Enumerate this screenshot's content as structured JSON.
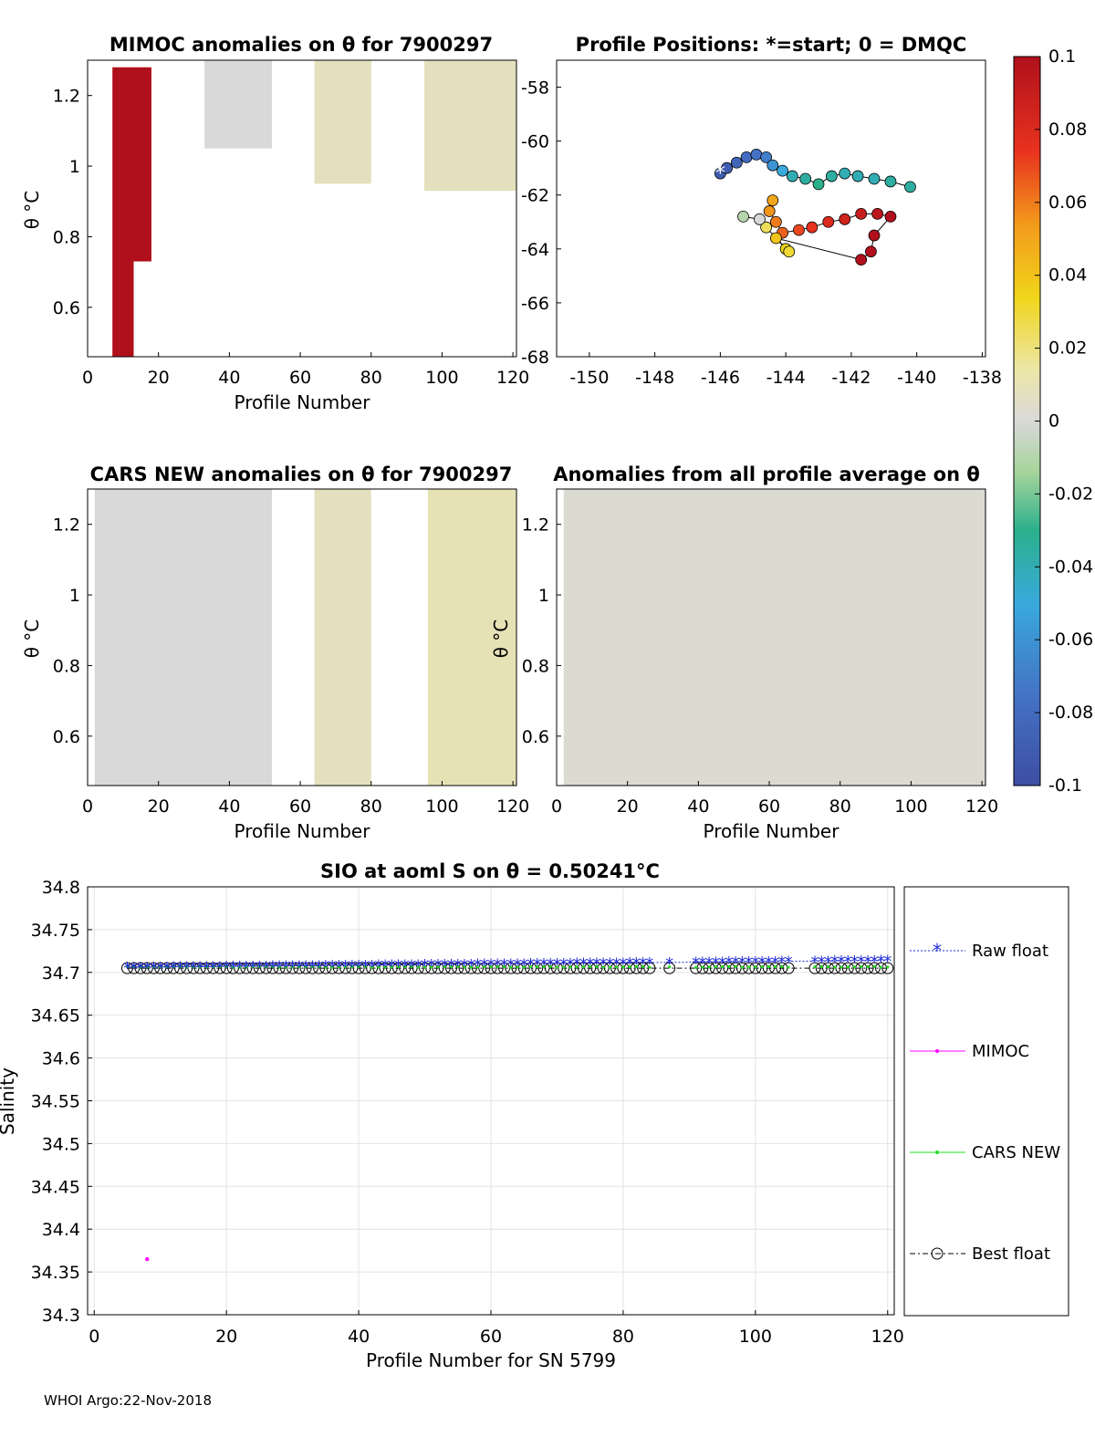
{
  "footer": "WHOI Argo:22-Nov-2018",
  "colorbar": {
    "ticks": [
      "0.1",
      "0.08",
      "0.06",
      "0.04",
      "0.02",
      "0",
      "-0.02",
      "-0.04",
      "-0.06",
      "-0.08",
      "-0.1"
    ],
    "range": [
      -0.1,
      0.1
    ]
  },
  "chart_data": [
    {
      "id": "mimoc",
      "type": "heatmap",
      "title": "MIMOC anomalies on θ  for 7900297",
      "xlabel": "Profile Number",
      "ylabel": "θ °C",
      "xlim": [
        0,
        121
      ],
      "ylim": [
        0.46,
        1.3
      ],
      "xticks": [
        "0",
        "20",
        "40",
        "60",
        "80",
        "100",
        "120"
      ],
      "yticks": [
        "1.2",
        "1",
        "0.8",
        "0.6"
      ],
      "data_columns": [
        {
          "from": 7,
          "to": 9,
          "theta_min": 0.46,
          "theta_max": 1.28,
          "anomaly": 0.1
        },
        {
          "from": 9,
          "to": 13,
          "theta_min": 0.46,
          "theta_max": 1.28,
          "anomaly": 0.1
        },
        {
          "from": 13,
          "to": 18,
          "theta_min": 0.73,
          "theta_max": 1.28,
          "anomaly": 0.1
        },
        {
          "from": 33,
          "to": 52,
          "theta_min": 1.05,
          "theta_max": 1.3,
          "anomaly": 0.0
        },
        {
          "from": 64,
          "to": 80,
          "theta_min": 0.95,
          "theta_max": 1.3,
          "anomaly": 0.008
        },
        {
          "from": 95,
          "to": 121,
          "theta_min": 0.93,
          "theta_max": 1.3,
          "anomaly": 0.008
        }
      ]
    },
    {
      "id": "positions",
      "type": "scatter",
      "title": "Profile Positions: *=start; 0 = DMQC",
      "xlim": [
        -151,
        -137.9
      ],
      "ylim": [
        -68,
        -57
      ],
      "xticks": [
        "-150",
        "-148",
        "-146",
        "-144",
        "-142",
        "-140",
        "-138"
      ],
      "yticks": [
        "-58",
        "-60",
        "-62",
        "-64",
        "-66",
        "-68"
      ],
      "start": [
        -146,
        -61.2
      ],
      "track": [
        [
          -146.0,
          -61.2,
          -0.09
        ],
        [
          -145.8,
          -61.0,
          -0.09
        ],
        [
          -145.5,
          -60.8,
          -0.085
        ],
        [
          -145.2,
          -60.6,
          -0.08
        ],
        [
          -144.9,
          -60.5,
          -0.075
        ],
        [
          -144.6,
          -60.6,
          -0.07
        ],
        [
          -144.4,
          -60.9,
          -0.06
        ],
        [
          -144.1,
          -61.1,
          -0.05
        ],
        [
          -143.8,
          -61.3,
          -0.04
        ],
        [
          -143.4,
          -61.4,
          -0.035
        ],
        [
          -143.0,
          -61.6,
          -0.03
        ],
        [
          -142.6,
          -61.3,
          -0.035
        ],
        [
          -142.2,
          -61.2,
          -0.04
        ],
        [
          -141.8,
          -61.3,
          -0.04
        ],
        [
          -141.3,
          -61.4,
          -0.04
        ],
        [
          -140.8,
          -61.5,
          -0.035
        ],
        [
          -140.2,
          -61.7,
          -0.035
        ],
        [
          -144.4,
          -62.2,
          0.05
        ],
        [
          -144.5,
          -62.6,
          0.055
        ],
        [
          -144.3,
          -63.0,
          0.06
        ],
        [
          -144.1,
          -63.4,
          0.065
        ],
        [
          -143.6,
          -63.3,
          0.07
        ],
        [
          -143.2,
          -63.2,
          0.075
        ],
        [
          -142.7,
          -63.0,
          0.08
        ],
        [
          -142.2,
          -62.9,
          0.085
        ],
        [
          -141.7,
          -62.7,
          0.09
        ],
        [
          -141.2,
          -62.7,
          0.095
        ],
        [
          -140.8,
          -62.8,
          0.1
        ],
        [
          -141.3,
          -63.5,
          0.1
        ],
        [
          -141.4,
          -64.1,
          0.1
        ],
        [
          -141.7,
          -64.4,
          0.1
        ],
        [
          -144.3,
          -63.6,
          0.04
        ],
        [
          -144.0,
          -64.0,
          0.035
        ],
        [
          -143.9,
          -64.1,
          0.03
        ],
        [
          -144.6,
          -63.2,
          0.025
        ],
        [
          -144.8,
          -62.9,
          0.0
        ],
        [
          -145.3,
          -62.8,
          -0.01
        ]
      ]
    },
    {
      "id": "cars",
      "type": "heatmap",
      "title": "CARS NEW anomalies on θ for 7900297",
      "xlabel": "Profile Number",
      "ylabel": "θ °C",
      "xlim": [
        0,
        121
      ],
      "ylim": [
        0.46,
        1.3
      ],
      "xticks": [
        "0",
        "20",
        "40",
        "60",
        "80",
        "100",
        "120"
      ],
      "yticks": [
        "1.2",
        "1",
        "0.8",
        "0.6"
      ],
      "data_columns": [
        {
          "from": 2,
          "to": 52,
          "theta_min": 0.46,
          "theta_max": 1.3,
          "anomaly": 0.0
        },
        {
          "from": 64,
          "to": 80,
          "theta_min": 0.46,
          "theta_max": 1.3,
          "anomaly": 0.008
        },
        {
          "from": 96,
          "to": 121,
          "theta_min": 0.46,
          "theta_max": 1.3,
          "anomaly": 0.01
        }
      ]
    },
    {
      "id": "allprof",
      "type": "heatmap",
      "title": "Anomalies from all profile average on θ",
      "xlabel": "Profile Number",
      "ylabel": "θ °C",
      "xlim": [
        0,
        121
      ],
      "ylim": [
        0.46,
        1.3
      ],
      "xticks": [
        "0",
        "20",
        "40",
        "60",
        "80",
        "100",
        "120"
      ],
      "yticks": [
        "1.2",
        "1",
        "0.8",
        "0.6"
      ],
      "data_columns": [
        {
          "from": 2,
          "to": 121,
          "theta_min": 0.46,
          "theta_max": 1.3,
          "anomaly": 0.002
        }
      ]
    },
    {
      "id": "salinity",
      "type": "scatter",
      "title": "SIO at aoml S on θ = 0.50241°C",
      "xlabel": "Profile Number for SN 5799",
      "ylabel": "Salinity",
      "xlim": [
        -1,
        121
      ],
      "ylim": [
        34.3,
        34.8
      ],
      "xticks": [
        "0",
        "20",
        "40",
        "60",
        "80",
        "100",
        "120"
      ],
      "yticks": [
        "34.8",
        "34.75",
        "34.7",
        "34.65",
        "34.6",
        "34.55",
        "34.5",
        "34.45",
        "34.4",
        "34.35",
        "34.3"
      ],
      "legend": [
        "Raw float",
        "MIMOC",
        "CARS NEW",
        "Best float"
      ],
      "legend_position": "right",
      "mimoc_points": [
        [
          8,
          34.365
        ]
      ],
      "profiles_start": 5,
      "profiles_end": 120,
      "raw_float_range": [
        34.706,
        34.714
      ],
      "best_float_value": 34.705,
      "cars_new_range": [
        34.706,
        34.707
      ],
      "missing_profiles": [
        85,
        86,
        88,
        89,
        90,
        106,
        107,
        108
      ]
    }
  ]
}
